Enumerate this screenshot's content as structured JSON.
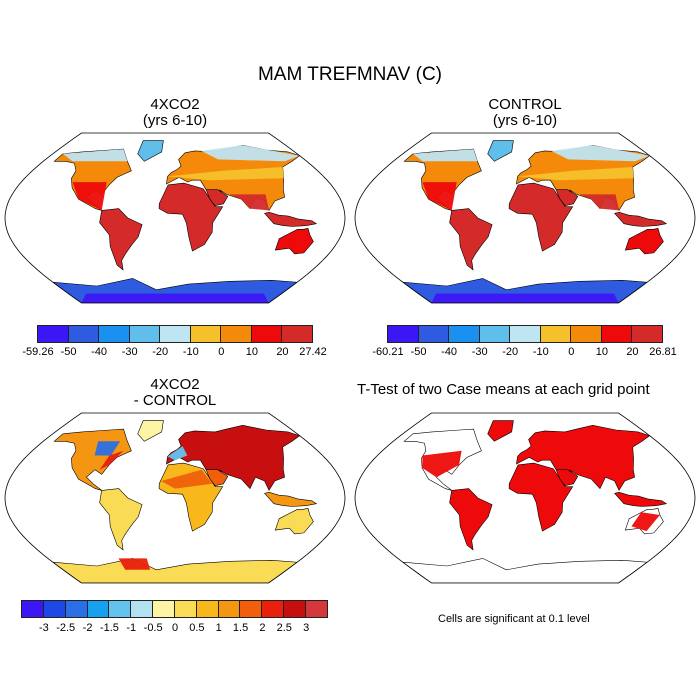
{
  "title": "MAM TREFMNAV (C)",
  "panels": {
    "top_left": {
      "line1": "4XCO2",
      "line2": "(yrs 6-10)"
    },
    "top_right": {
      "line1": "CONTROL",
      "line2": "(yrs 6-10)"
    },
    "bottom_left": {
      "line1": "4XCO2",
      "line2": "- CONTROL"
    },
    "bottom_right": {
      "title": "T-Test of two Case means at each grid point",
      "note": "Cells are significant at 0.1 level"
    }
  },
  "colorbars": {
    "abs_colors": [
      "#3d16f5",
      "#2e5be0",
      "#1a91f0",
      "#5fbfea",
      "#bfe4f2",
      "#f5c12a",
      "#f58a0a",
      "#ee0a0a",
      "#d42a2a"
    ],
    "cb1_labels": [
      "-59.26",
      "-50",
      "-40",
      "-30",
      "-20",
      "-10",
      "0",
      "10",
      "20",
      "27.42"
    ],
    "cb2_labels": [
      "-60.21",
      "-50",
      "-40",
      "-30",
      "-20",
      "-10",
      "0",
      "10",
      "20",
      "26.81"
    ],
    "diff_colors": [
      "#3d16f5",
      "#1f47e6",
      "#2b6fe6",
      "#16a0f0",
      "#62c4ee",
      "#b3e1f2",
      "#fdf5a4",
      "#f9db55",
      "#f8b81c",
      "#f59612",
      "#ef5f0c",
      "#e8200c",
      "#c80f10",
      "#d3393a"
    ],
    "cb3_labels": [
      "-3",
      "-2.5",
      "-2",
      "-1.5",
      "-1",
      "-0.5",
      "0",
      "0.5",
      "1",
      "1.5",
      "2",
      "2.5",
      "3"
    ],
    "sig_color": "#ee0a0a"
  }
}
